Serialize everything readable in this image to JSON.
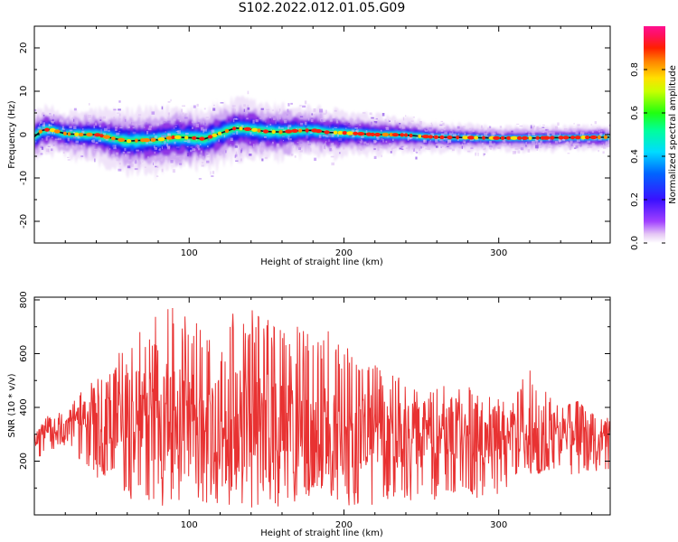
{
  "title": "S102.2022.012.01.05.G09",
  "colors": {
    "snr_line": "#e83232",
    "axes": "#000000",
    "ridge_dark": "#101030"
  },
  "colorbar": {
    "label": "Normalized spectral amplitude",
    "range": [
      0.0,
      1.0
    ],
    "ticks": [
      "0.0",
      "0.2",
      "0.4",
      "0.6",
      "0.8"
    ],
    "tick_values": [
      0.0,
      0.2,
      0.4,
      0.6,
      0.8
    ],
    "colormap": "rainbow (white → purple → blue → cyan → green → yellow → orange → red → magenta)"
  },
  "chart_data": [
    {
      "type": "heatmap",
      "title": "S102.2022.012.01.05.G09",
      "xlabel": "Height of straight line (km)",
      "ylabel": "Frequency (Hz)",
      "xlim": [
        0,
        372
      ],
      "ylim": [
        -25,
        25
      ],
      "xticks": [
        100,
        200,
        300
      ],
      "yticks": [
        -20,
        -10,
        0,
        10,
        20
      ],
      "xtick_labels": [
        "100",
        "200",
        "300"
      ],
      "ytick_labels": [
        "-20",
        "-10",
        "0",
        "10",
        "20"
      ],
      "value_range": [
        0,
        1
      ],
      "ridge_center_hz": {
        "x": [
          0,
          5,
          10,
          20,
          30,
          40,
          50,
          60,
          70,
          80,
          90,
          100,
          110,
          120,
          130,
          140,
          150,
          160,
          170,
          180,
          190,
          200,
          210,
          220,
          230,
          240,
          250,
          260,
          280,
          300,
          320,
          340,
          372
        ],
        "y": [
          -0.5,
          1.0,
          1.2,
          0.2,
          0.0,
          0.0,
          -0.8,
          -1.5,
          -1.3,
          -1.2,
          -0.6,
          -0.7,
          -1.0,
          0.3,
          1.5,
          1.2,
          0.7,
          0.6,
          0.9,
          1.0,
          0.5,
          0.4,
          0.2,
          0.0,
          0.0,
          -0.1,
          -0.4,
          -0.6,
          -0.7,
          -0.8,
          -0.8,
          -0.7,
          -0.6
        ]
      },
      "ridge_spread_hz": {
        "x": [
          0,
          20,
          60,
          100,
          140,
          180,
          220,
          260,
          300,
          372
        ],
        "y": [
          2.0,
          1.8,
          2.6,
          2.6,
          2.4,
          2.0,
          1.6,
          1.2,
          1.0,
          1.0
        ]
      }
    },
    {
      "type": "line",
      "xlabel": "Height of straight line (km)",
      "ylabel": "SNR (10 * v/v)",
      "xlim": [
        0,
        372
      ],
      "ylim": [
        0,
        810
      ],
      "xticks": [
        100,
        200,
        300
      ],
      "yticks": [
        200,
        400,
        600,
        800
      ],
      "xtick_labels": [
        "100",
        "200",
        "300"
      ],
      "ytick_labels": [
        "200",
        "400",
        "600",
        "800"
      ],
      "series": [
        {
          "color": "#e83232",
          "envelope_x": [
            0,
            10,
            20,
            30,
            40,
            50,
            60,
            70,
            80,
            85,
            90,
            100,
            110,
            120,
            130,
            140,
            150,
            160,
            170,
            180,
            190,
            200,
            210,
            220,
            230,
            240,
            250,
            260,
            270,
            280,
            290,
            300,
            310,
            320,
            330,
            340,
            350,
            360,
            372
          ],
          "envelope_low": [
            200,
            240,
            260,
            200,
            140,
            100,
            60,
            40,
            30,
            20,
            30,
            40,
            40,
            30,
            40,
            10,
            30,
            30,
            40,
            80,
            60,
            20,
            40,
            30,
            60,
            60,
            20,
            60,
            80,
            60,
            60,
            80,
            120,
            140,
            160,
            160,
            140,
            160,
            170
          ],
          "envelope_high": [
            300,
            380,
            380,
            460,
            520,
            560,
            650,
            730,
            740,
            810,
            780,
            740,
            720,
            660,
            780,
            760,
            780,
            680,
            700,
            680,
            690,
            660,
            620,
            560,
            540,
            500,
            450,
            520,
            460,
            480,
            450,
            440,
            420,
            580,
            470,
            420,
            440,
            380,
            360
          ],
          "mean_approx": [
            280,
            300,
            320,
            340,
            360,
            370,
            370,
            370,
            360,
            360,
            350,
            340,
            340,
            330,
            340,
            320,
            320,
            310,
            310,
            310,
            310,
            300,
            300,
            300,
            300,
            300,
            290,
            300,
            300,
            300,
            290,
            300,
            300,
            330,
            320,
            300,
            300,
            290,
            300
          ]
        }
      ]
    }
  ]
}
